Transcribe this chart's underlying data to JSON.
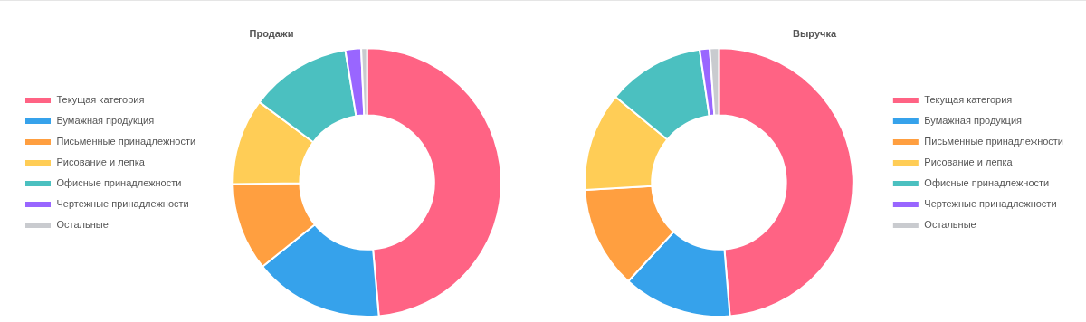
{
  "chart_data": [
    {
      "type": "donut",
      "title": "Продажи",
      "categories": [
        "Текущая категория",
        "Бумажная продукция",
        "Письменные принадлежности",
        "Рисование и лепка",
        "Офисные принадлежности",
        "Чертежные принадлежности",
        "Остальные"
      ],
      "values": [
        48.6,
        15.6,
        10.6,
        10.4,
        12.2,
        1.9,
        0.7
      ],
      "colors": [
        "#ff6384",
        "#36a2eb",
        "#ff9f40",
        "#ffcd56",
        "#4bc0c0",
        "#9966ff",
        "#c9cbcf"
      ],
      "legend": "left"
    },
    {
      "type": "donut",
      "title": "Выручка",
      "categories": [
        "Текущая категория",
        "Бумажная продукция",
        "Письменные принадлежности",
        "Рисование и лепка",
        "Офисные принадлежности",
        "Чертежные принадлежности",
        "Остальные"
      ],
      "values": [
        48.7,
        13.1,
        12.3,
        11.9,
        11.7,
        1.2,
        1.1
      ],
      "colors": [
        "#ff6384",
        "#36a2eb",
        "#ff9f40",
        "#ffcd56",
        "#4bc0c0",
        "#9966ff",
        "#c9cbcf"
      ],
      "legend": "right"
    }
  ]
}
